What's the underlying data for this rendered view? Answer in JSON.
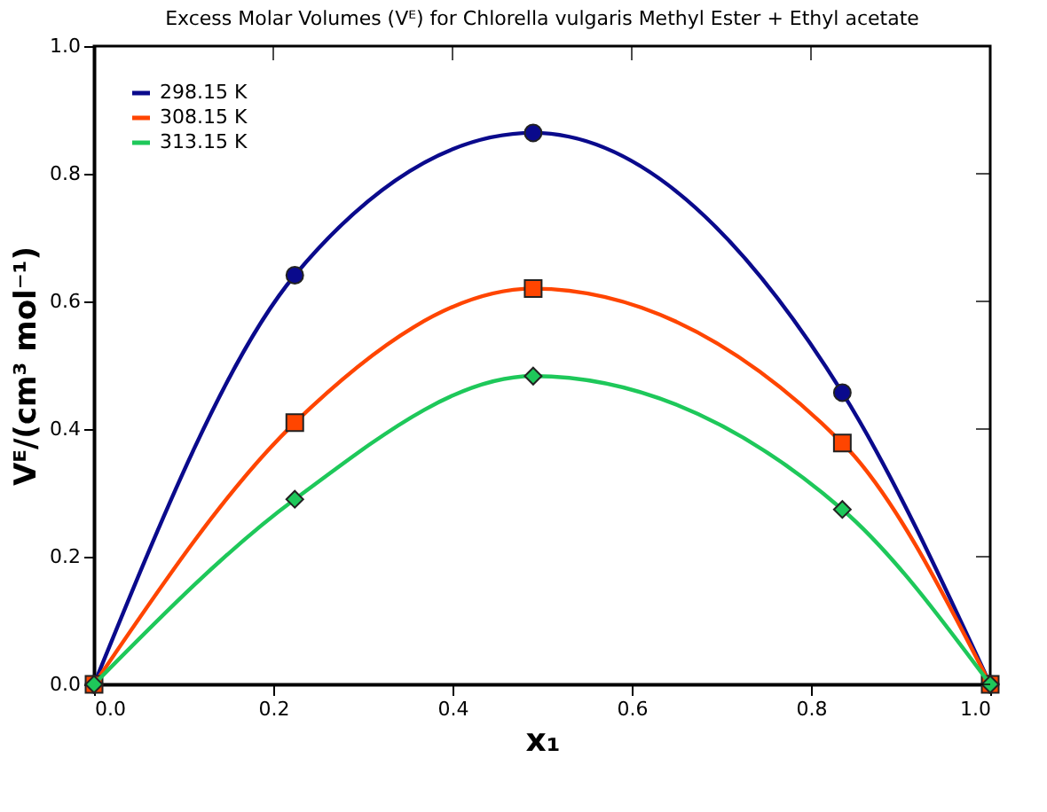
{
  "chart_data": {
    "type": "line",
    "title": "Excess Molar Volumes (Vᴱ) for Chlorella vulgaris Methyl Ester + Ethyl acetate",
    "xlabel": "x₁",
    "ylabel": "Vᴱ/(cm³ mol⁻¹)",
    "x": [
      0.0,
      0.224,
      0.49,
      0.835,
      1.0
    ],
    "series": [
      {
        "name": "298.15 K",
        "color": "#0a0a8c",
        "marker": "circle",
        "values": [
          0.0,
          0.641,
          0.864,
          0.457,
          0.0
        ]
      },
      {
        "name": "308.15 K",
        "color": "#ff4500",
        "marker": "square",
        "values": [
          0.0,
          0.41,
          0.62,
          0.378,
          0.0
        ]
      },
      {
        "name": "313.15 K",
        "color": "#1ec85a",
        "marker": "diamond",
        "values": [
          0.0,
          0.29,
          0.483,
          0.274,
          0.0
        ]
      }
    ],
    "xlim": [
      0.0,
      1.0
    ],
    "ylim": [
      0.0,
      1.0
    ],
    "xticks": [
      {
        "value": 0.0,
        "label": "0.0"
      },
      0.2,
      0.4,
      0.6,
      0.8,
      {
        "value": 1.0,
        "label": "1.0"
      }
    ],
    "yticks": [
      {
        "value": 0.0,
        "label": "0.0"
      },
      0.2,
      0.4,
      0.6,
      0.8,
      {
        "value": 1.0,
        "label": "1.0"
      }
    ],
    "grid": false,
    "legend": "top left",
    "line_style": "solid"
  }
}
